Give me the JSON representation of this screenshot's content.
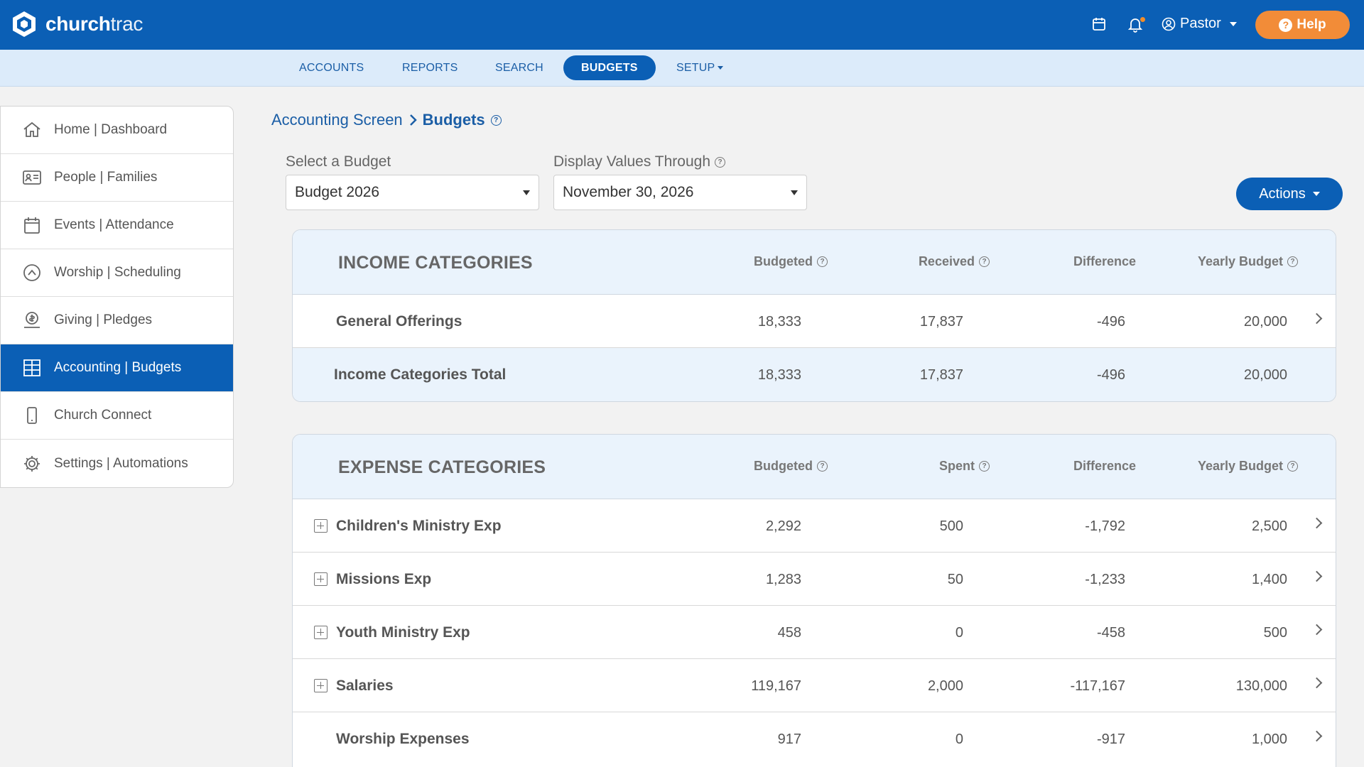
{
  "app": {
    "logo_text_bold": "church",
    "logo_text_light": "trac",
    "user": "Pastor",
    "help_label": "Help"
  },
  "nav": {
    "tabs": [
      {
        "label": "ACCOUNTS",
        "active": false
      },
      {
        "label": "REPORTS",
        "active": false
      },
      {
        "label": "SEARCH",
        "active": false
      },
      {
        "label": "BUDGETS",
        "active": true
      },
      {
        "label": "SETUP",
        "active": false
      }
    ]
  },
  "sidebar": {
    "items": [
      {
        "label": "Home | Dashboard",
        "icon": "home-icon"
      },
      {
        "label": "People | Families",
        "icon": "id-card-icon"
      },
      {
        "label": "Events | Attendance",
        "icon": "calendar-icon"
      },
      {
        "label": "Worship | Scheduling",
        "icon": "worship-icon"
      },
      {
        "label": "Giving | Pledges",
        "icon": "giving-icon"
      },
      {
        "label": "Accounting | Budgets",
        "icon": "grid-icon",
        "active": true
      },
      {
        "label": "Church Connect",
        "icon": "phone-icon"
      },
      {
        "label": "Settings | Automations",
        "icon": "gear-icon"
      }
    ]
  },
  "breadcrumb": {
    "parent": "Accounting Screen",
    "current": "Budgets"
  },
  "filters": {
    "budget_label": "Select a Budget",
    "budget_value": "Budget 2026",
    "through_label": "Display Values Through",
    "through_value": "November 30, 2026"
  },
  "actions_label": "Actions",
  "income": {
    "title": "INCOME CATEGORIES",
    "columns": [
      "Budgeted",
      "Received",
      "Difference",
      "Yearly Budget"
    ],
    "rows": [
      {
        "name": "General Offerings",
        "values": [
          "18,333",
          "17,837",
          "-496",
          "20,000"
        ]
      }
    ],
    "total": {
      "name": "Income Categories Total",
      "values": [
        "18,333",
        "17,837",
        "-496",
        "20,000"
      ]
    }
  },
  "expense": {
    "title": "EXPENSE CATEGORIES",
    "columns": [
      "Budgeted",
      "Spent",
      "Difference",
      "Yearly Budget"
    ],
    "rows": [
      {
        "name": "Children's Ministry Exp",
        "values": [
          "2,292",
          "500",
          "-1,792",
          "2,500"
        ],
        "expandable": true
      },
      {
        "name": "Missions Exp",
        "values": [
          "1,283",
          "50",
          "-1,233",
          "1,400"
        ],
        "expandable": true
      },
      {
        "name": "Youth Ministry Exp",
        "values": [
          "458",
          "0",
          "-458",
          "500"
        ],
        "expandable": true
      },
      {
        "name": "Salaries",
        "values": [
          "119,167",
          "2,000",
          "-117,167",
          "130,000"
        ],
        "expandable": true
      },
      {
        "name": "Worship Expenses",
        "values": [
          "917",
          "0",
          "-917",
          "1,000"
        ],
        "expandable": false
      }
    ]
  },
  "colors": {
    "brand": "#0b5fb5",
    "help": "#f28c38",
    "subnav_bg": "#dcebfa",
    "panel_head_bg": "#eaf3fc"
  }
}
